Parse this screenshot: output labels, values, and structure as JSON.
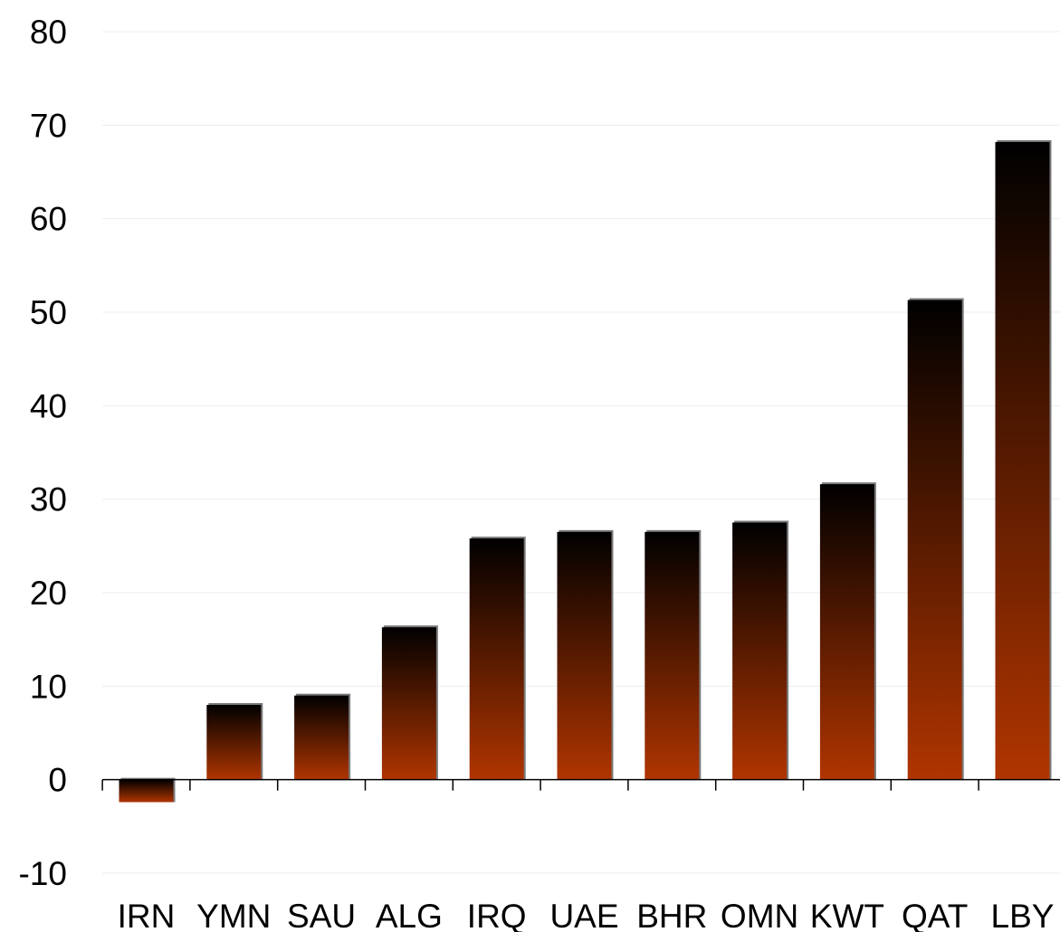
{
  "chart_data": {
    "type": "bar",
    "title": "",
    "xlabel": "",
    "ylabel": "",
    "categories": [
      "IRN",
      "YMN",
      "SAU",
      "ALG",
      "IRQ",
      "UAE",
      "BHR",
      "OMN",
      "KWT",
      "QAT",
      "LBY"
    ],
    "values": [
      -2.4,
      8.0,
      9.0,
      16.3,
      25.8,
      26.5,
      26.5,
      27.5,
      31.6,
      51.3,
      68.2
    ],
    "ylim": [
      -10,
      80
    ],
    "yticks": [
      "-10",
      "0",
      "10",
      "20",
      "30",
      "40",
      "50",
      "60",
      "70",
      "80"
    ],
    "grid": true,
    "legend": "none",
    "bar_gradient": {
      "top": "#000000",
      "bottom": "#b03500"
    }
  }
}
